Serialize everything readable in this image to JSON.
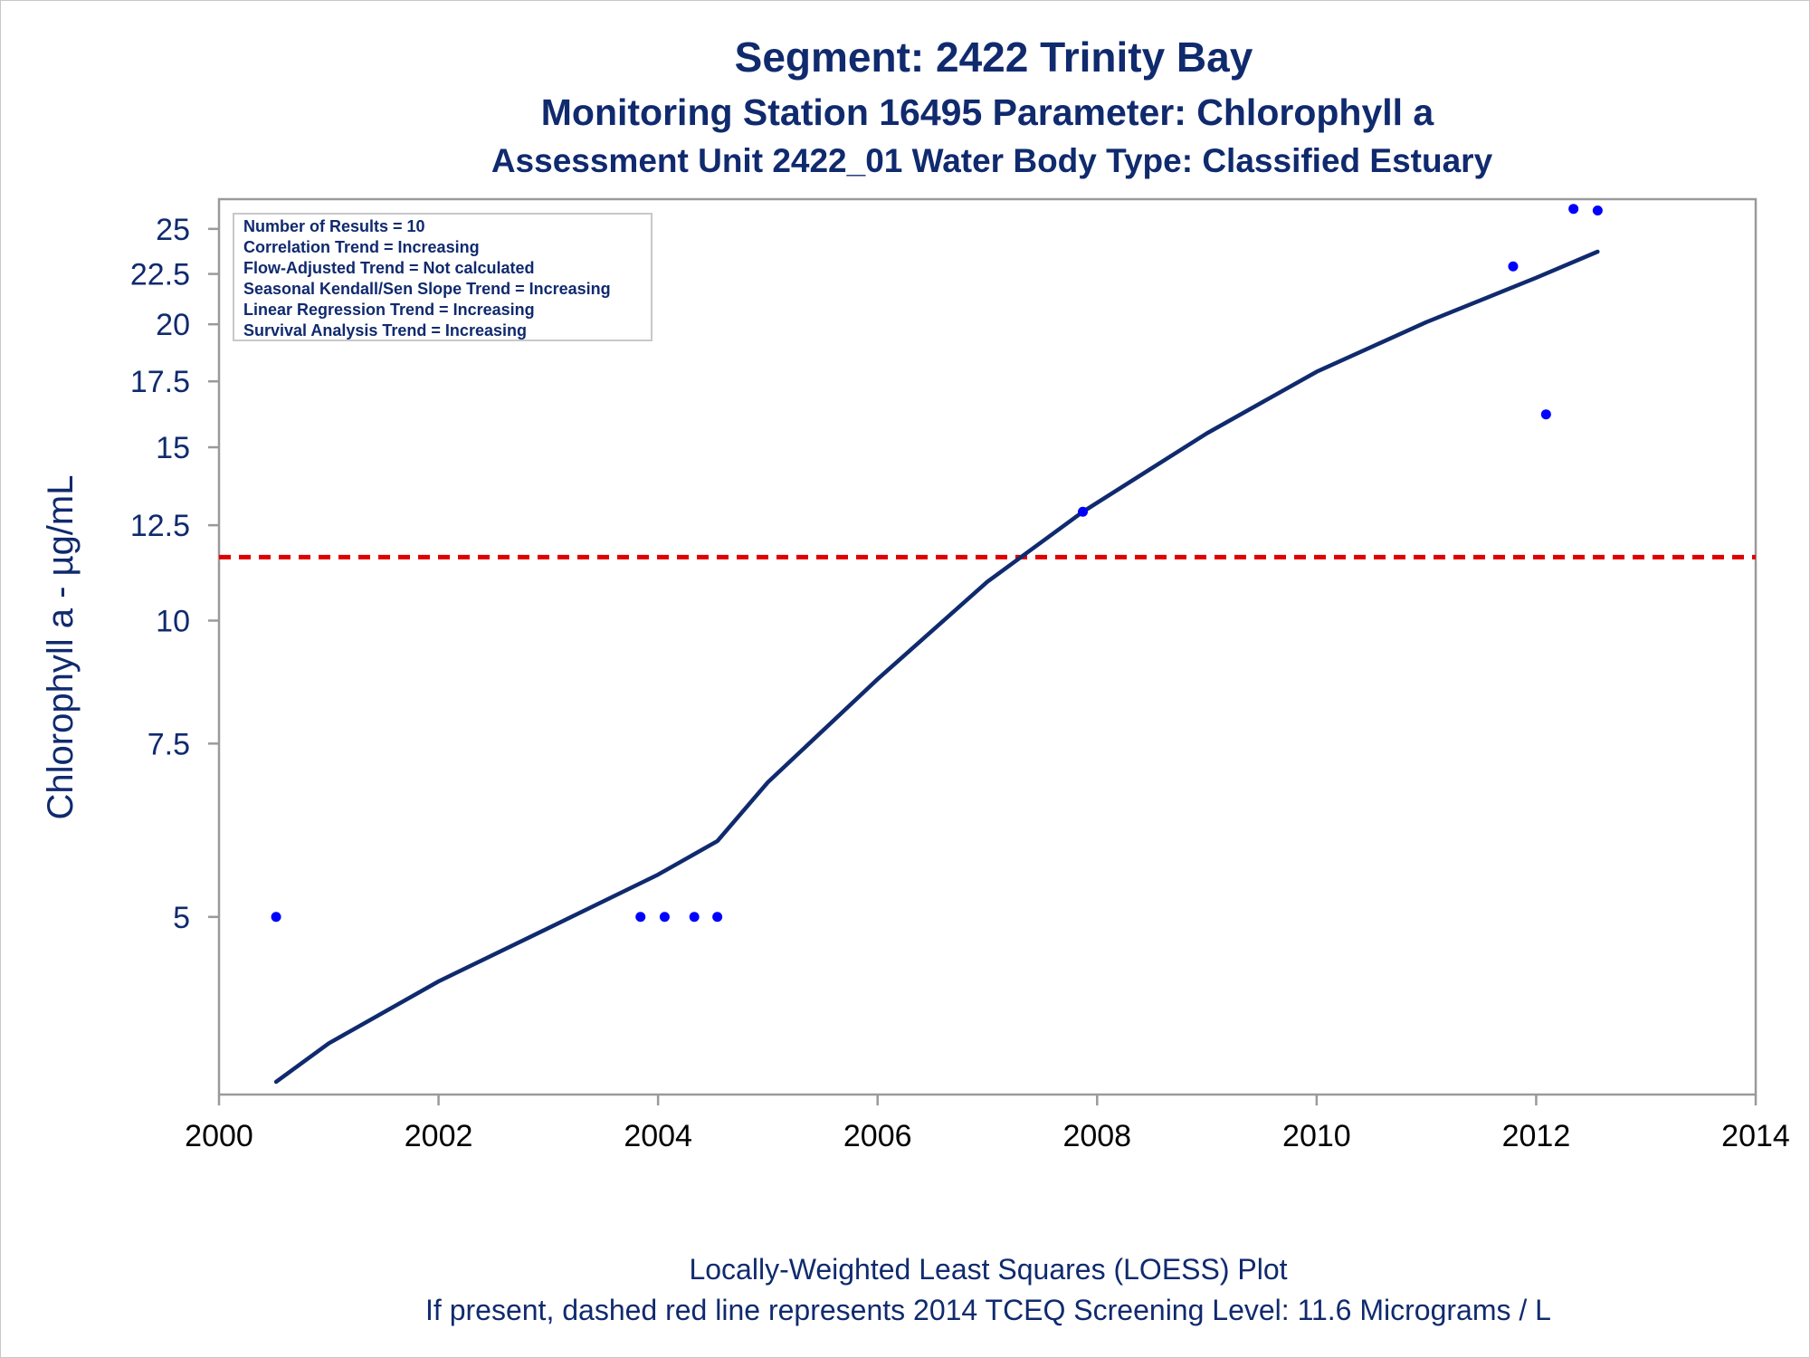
{
  "chart_data": {
    "type": "scatter",
    "title": "Segment: 2422  Trinity Bay",
    "subtitle": "Monitoring Station 16495 Parameter: Chlorophyll a",
    "subtitle2": "Assessment Unit 2422_01   Water Body Type: Classified Estuary",
    "ylabel": "Chlorophyll a -  µg/mL",
    "xlabel": "",
    "y_scale": "log",
    "xlim": [
      2000,
      2014
    ],
    "ylim": [
      3.3,
      26.8
    ],
    "x_ticks": [
      "2000",
      "2002",
      "2004",
      "2006",
      "2008",
      "2010",
      "2012",
      "2014"
    ],
    "y_ticks": [
      "5",
      "7.5",
      "10",
      "12.5",
      "15",
      "17.5",
      "20",
      "22.5",
      "25"
    ],
    "y_tick_values": [
      5,
      7.5,
      10,
      12.5,
      15,
      17.5,
      20,
      22.5,
      25
    ],
    "grid": false,
    "series": [
      {
        "kind": "points",
        "color": "#0000ff",
        "points": [
          {
            "x": 2000.52,
            "y": 5.0
          },
          {
            "x": 2003.84,
            "y": 5.0
          },
          {
            "x": 2004.06,
            "y": 5.0
          },
          {
            "x": 2004.33,
            "y": 5.0
          },
          {
            "x": 2004.54,
            "y": 5.0
          },
          {
            "x": 2007.87,
            "y": 12.9
          },
          {
            "x": 2011.79,
            "y": 22.9
          },
          {
            "x": 2012.09,
            "y": 16.2
          },
          {
            "x": 2012.34,
            "y": 26.2
          },
          {
            "x": 2012.56,
            "y": 26.1
          }
        ]
      },
      {
        "kind": "loess",
        "color": "#102a6e",
        "points": [
          {
            "x": 2000.52,
            "y": 3.4
          },
          {
            "x": 2001.0,
            "y": 3.72
          },
          {
            "x": 2002.0,
            "y": 4.3
          },
          {
            "x": 2003.0,
            "y": 4.87
          },
          {
            "x": 2004.0,
            "y": 5.52
          },
          {
            "x": 2004.54,
            "y": 5.97
          },
          {
            "x": 2005.0,
            "y": 6.85
          },
          {
            "x": 2006.0,
            "y": 8.72
          },
          {
            "x": 2007.0,
            "y": 10.95
          },
          {
            "x": 2007.87,
            "y": 12.9
          },
          {
            "x": 2009.0,
            "y": 15.5
          },
          {
            "x": 2010.0,
            "y": 17.9
          },
          {
            "x": 2011.0,
            "y": 20.1
          },
          {
            "x": 2012.0,
            "y": 22.3
          },
          {
            "x": 2012.56,
            "y": 23.7
          }
        ]
      }
    ],
    "reference_line": {
      "y": 11.6,
      "color": "#e00000",
      "style": "dashed"
    },
    "legend": {
      "position": "top-left",
      "entries": [
        "Number of Results = 10",
        "Correlation Trend = Increasing",
        "Flow-Adjusted Trend = Not calculated",
        "Seasonal Kendall/Sen Slope Trend = Increasing",
        "Linear Regression Trend = Increasing",
        "Survival Analysis Trend = Increasing"
      ]
    },
    "footnotes": [
      "Locally-Weighted Least Squares (LOESS) Plot",
      "If present, dashed red line represents 2014 TCEQ Screening Level: 11.6 Micrograms / L"
    ]
  }
}
